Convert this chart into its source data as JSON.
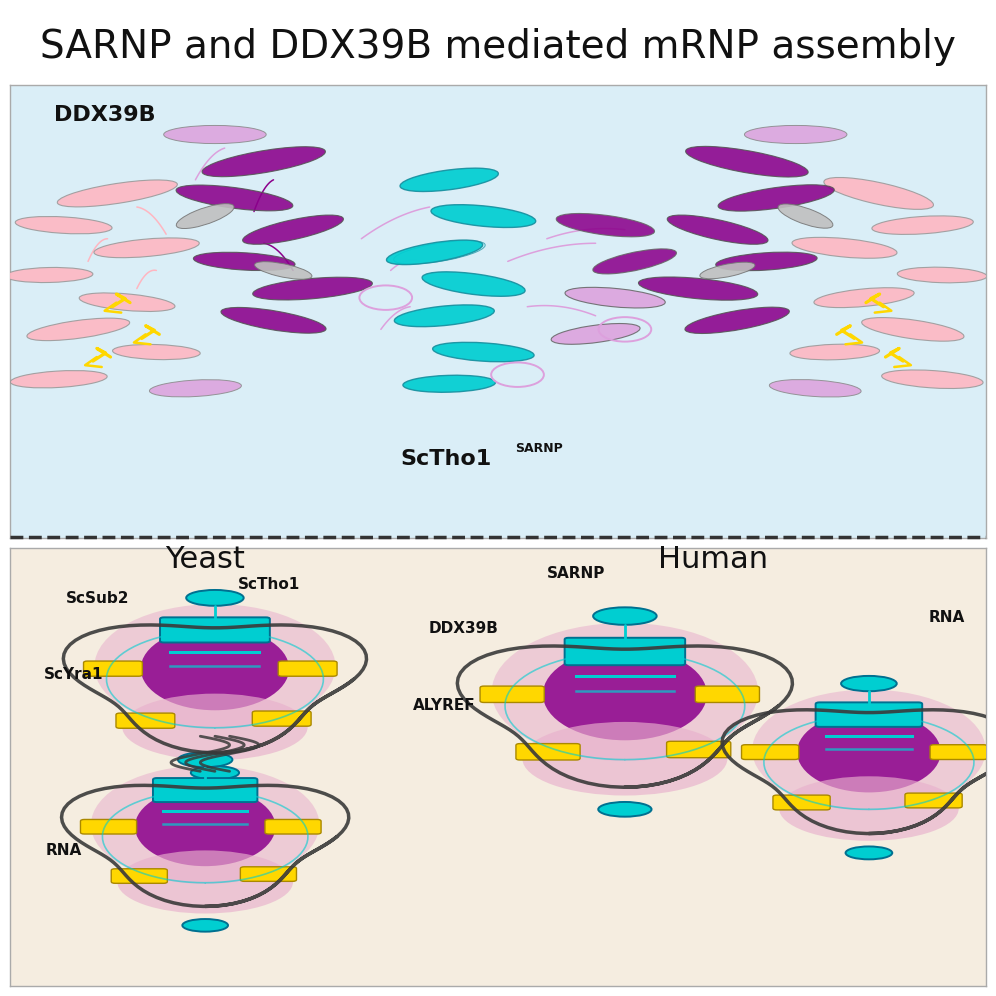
{
  "title": "SARNP and DDX39B mediated mRNP assembly",
  "title_fontsize": 28,
  "title_bg": "#e8e8e8",
  "top_panel_bg": "#daeef7",
  "bottom_panel_bg": "#f5ede0",
  "border_color": "#333333",
  "label_ddx39b": "DDX39B",
  "label_sctho1": "ScTho1",
  "label_sctho1_super": "SARNP",
  "label_yeast": "Yeast",
  "label_human": "Human",
  "label_scsub2": "ScSub2",
  "label_scyra1": "ScYra1",
  "label_rna_yeast": "RNA",
  "label_sarnp": "SARNP",
  "label_ddx39b_h": "DDX39B",
  "label_alyref": "ALYREF",
  "label_rna_human": "RNA",
  "color_purple_dark": "#8B008B",
  "color_purple_light": "#DDA0DD",
  "color_pink": "#FFB6C1",
  "color_cyan": "#00CED1",
  "color_gold": "#FFD700",
  "color_gray": "#808080",
  "color_dark_gray": "#404040",
  "color_white": "#FFFFFF"
}
